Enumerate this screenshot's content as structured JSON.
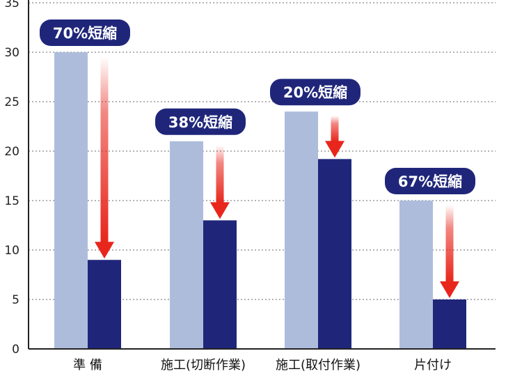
{
  "chart_data": {
    "type": "bar",
    "categories": [
      "準 備",
      "施工(切断作業)",
      "施工(取付作業)",
      "片付け"
    ],
    "series": [
      {
        "values": [
          30,
          21,
          24,
          15
        ]
      },
      {
        "values": [
          9,
          13,
          19.2,
          5
        ]
      }
    ],
    "annotations": [
      "70%短縮",
      "38%短縮",
      "20%短縮",
      "67%短縮"
    ],
    "y_ticks": [
      "0",
      "5",
      "10",
      "15",
      "20",
      "25",
      "30",
      "35"
    ],
    "ylim": [
      0,
      35
    ],
    "grid": true,
    "colors": {
      "before": "#aebcdc",
      "after": "#1f267a",
      "badge": "#1f267a",
      "arrow": "#e8261c"
    }
  }
}
